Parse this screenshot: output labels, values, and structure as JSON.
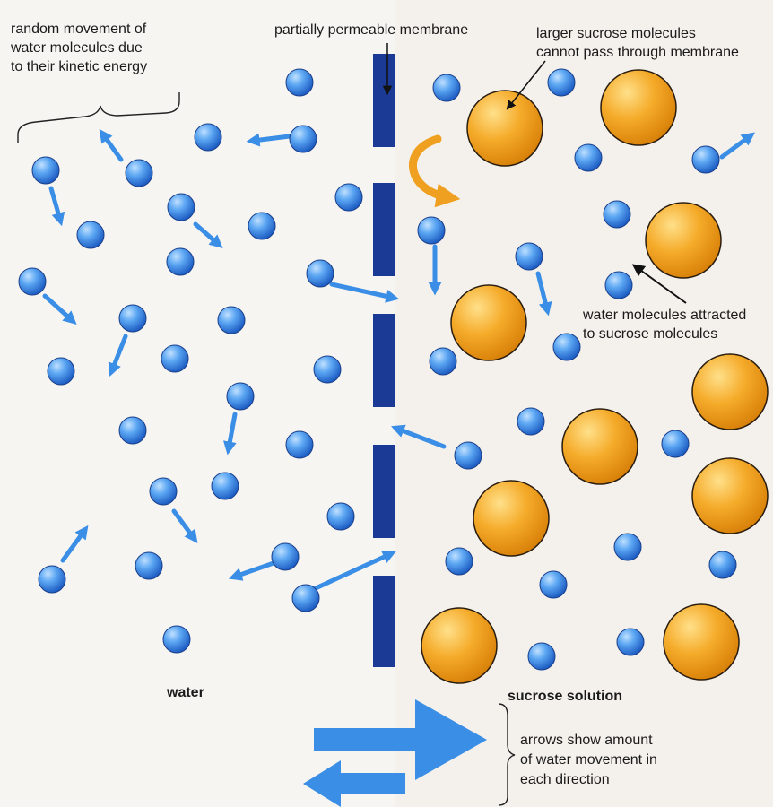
{
  "labels": {
    "random_movement": [
      "random movement of",
      "water molecules due",
      "to their kinetic energy"
    ],
    "membrane": "partially permeable membrane",
    "sucrose_cannot_pass": [
      "larger sucrose molecules",
      "cannot pass through membrane"
    ],
    "water_attracted": [
      "water molecules attracted",
      "to sucrose molecules"
    ],
    "water_side": "water",
    "sucrose_side": "sucrose solution",
    "arrows_note": [
      "arrows show amount",
      "of water movement in",
      "each direction"
    ]
  },
  "colors": {
    "water_molecule": "#3d8fe8",
    "sucrose_molecule": "#f0a01e",
    "membrane": "#1b3a96",
    "arrow": "#3a8ee6",
    "curved_arrow": "#f0a020"
  }
}
